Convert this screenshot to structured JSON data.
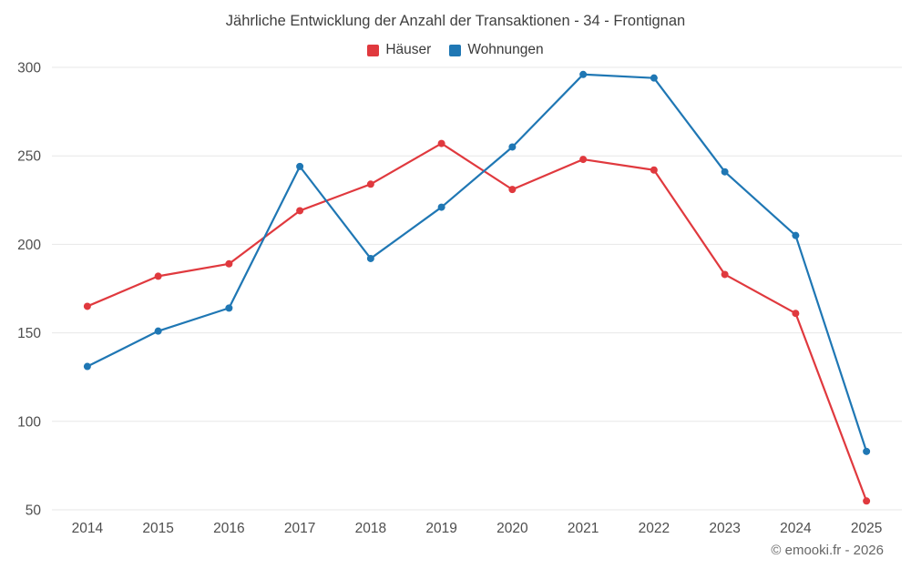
{
  "title": "Jährliche Entwicklung der Anzahl der Transaktionen - 34 - Frontignan",
  "footer": {
    "copyright": "© emooki.fr - 2026"
  },
  "colors": {
    "grid": "#e7e7e7",
    "tick_text": "#4e4e4e"
  },
  "chart_data": {
    "type": "line",
    "title": "Jährliche Entwicklung der Anzahl der Transaktionen - 34 - Frontignan",
    "categories": [
      "2014",
      "2015",
      "2016",
      "2017",
      "2018",
      "2019",
      "2020",
      "2021",
      "2022",
      "2023",
      "2024",
      "2025"
    ],
    "series": [
      {
        "name": "Häuser",
        "color": "#e0393e",
        "values": [
          165,
          182,
          189,
          219,
          234,
          257,
          231,
          248,
          242,
          183,
          161,
          55
        ]
      },
      {
        "name": "Wohnungen",
        "color": "#1f77b4",
        "values": [
          131,
          151,
          164,
          244,
          192,
          221,
          255,
          296,
          294,
          241,
          205,
          83
        ]
      }
    ],
    "ylim": [
      50,
      300
    ],
    "yticks": [
      50,
      100,
      150,
      200,
      250,
      300
    ],
    "xlabel": "",
    "ylabel": "",
    "grid": true,
    "legend_position": "top",
    "markers": true
  }
}
